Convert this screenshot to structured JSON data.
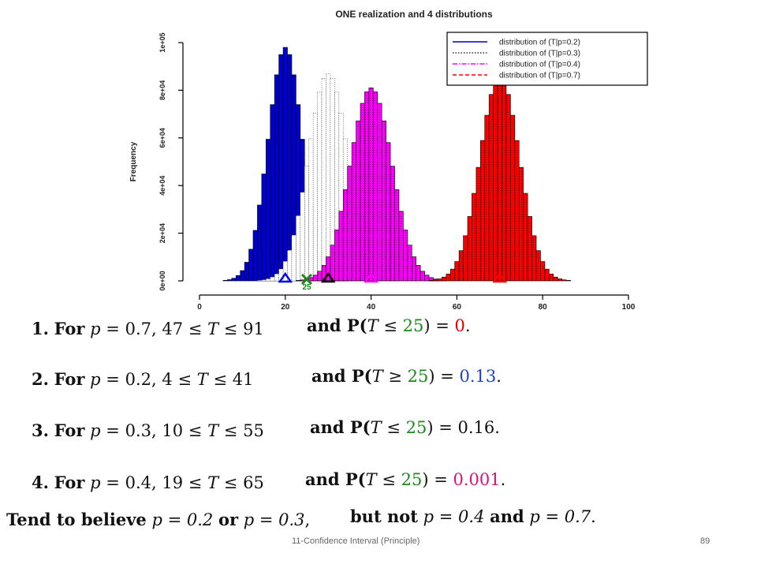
{
  "chart_data": {
    "type": "bar",
    "title": "ONE realization and 4 distributions",
    "xlabel": "",
    "ylabel": "Frequency",
    "xlim": [
      0,
      100
    ],
    "ylim": [
      0,
      100000
    ],
    "x_ticks": [
      "0",
      "20",
      "40",
      "60",
      "80",
      "100"
    ],
    "y_ticks": [
      "0e+00",
      "2e+04",
      "4e+04",
      "6e+04",
      "8e+04",
      "1e+05"
    ],
    "bin_width": 1,
    "series": [
      {
        "name": "distribution of (T|p=0.2)",
        "color": "#0000cc",
        "style": "solid",
        "mean": 20,
        "sd": 4,
        "peak": 98000,
        "range": [
          4,
          41
        ]
      },
      {
        "name": "distribution of (T|p=0.3)",
        "color": "#333333",
        "style": "dotted",
        "mean": 30,
        "sd": 4.6,
        "peak": 87000,
        "range": [
          10,
          55
        ]
      },
      {
        "name": "distribution of (T|p=0.4)",
        "color": "#ff00ff",
        "style": "dotdash",
        "mean": 40,
        "sd": 4.9,
        "peak": 81000,
        "range": [
          19,
          65
        ]
      },
      {
        "name": "distribution of (T|p=0.7)",
        "color": "#ff0000",
        "style": "dashed",
        "mean": 70,
        "sd": 4.6,
        "peak": 86000,
        "range": [
          47,
          91
        ]
      }
    ],
    "markers": [
      {
        "type": "triangle",
        "x": 20,
        "color": "#0000ff"
      },
      {
        "type": "triangle",
        "x": 30,
        "color": "#000000"
      },
      {
        "type": "triangle",
        "x": 40,
        "color": "#ff00ff"
      },
      {
        "type": "triangle",
        "x": 70,
        "color": "#ff0000"
      },
      {
        "type": "cross",
        "x": 25,
        "color": "#1a8a1a",
        "label": "25"
      }
    ],
    "legend_position": "top-right"
  },
  "statements": [
    {
      "num": "1.",
      "p": "0.7",
      "lo": "47",
      "hi": "91",
      "op": "≤",
      "prob": "0",
      "prob_color": "red"
    },
    {
      "num": "2.",
      "p": "0.2",
      "lo": "4",
      "hi": "41",
      "op": "≥",
      "prob": "0.13",
      "prob_color": "blue"
    },
    {
      "num": "3.",
      "p": "0.3",
      "lo": "10",
      "hi": "55",
      "op": "≤",
      "prob": "0.16",
      "prob_color": "black"
    },
    {
      "num": "4.",
      "p": "0.4",
      "lo": "19",
      "hi": "65",
      "op": "≤",
      "prob": "0.001",
      "prob_color": "magenta"
    }
  ],
  "math_text": {
    "for": "For",
    "p_var": "p",
    "t_var": "T",
    "eq": "=",
    "le": "≤",
    "comma": ",",
    "and_p": "and P(",
    "threshold": "25",
    "close": ") =",
    "period": "."
  },
  "conclusion": {
    "tend": "Tend to believe",
    "p1": "p = 0.2",
    "or": "or",
    "p2": "p = 0.3",
    "comma": ",",
    "but_not": "but not",
    "p3": "p = 0.4",
    "and": "and",
    "p4": "p = 0.7",
    "period": "."
  },
  "footer": {
    "title": "11-Confidence Interval (Principle)",
    "page_number": "89"
  }
}
